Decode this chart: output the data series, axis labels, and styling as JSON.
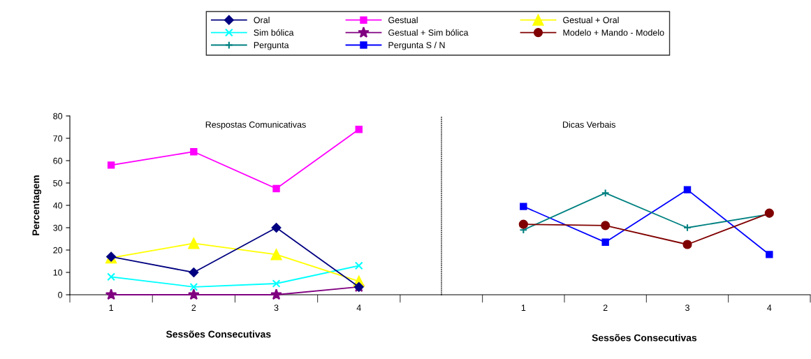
{
  "chart_data": [
    {
      "type": "line",
      "ylabel": "Percentagem",
      "xlabel": "Sessões Consecutivas",
      "categories": [
        "1",
        "2",
        "3",
        "4"
      ],
      "ylim": [
        0,
        80
      ],
      "yticks": [
        0,
        10,
        20,
        30,
        40,
        50,
        60,
        70,
        80
      ],
      "grid": false,
      "legend": "top",
      "annotations": [
        "Respostas Comunicativas"
      ],
      "series": [
        {
          "name": "Oral",
          "color": "#000080",
          "marker": "diamond",
          "values": [
            17,
            10,
            30,
            3.5
          ]
        },
        {
          "name": "Gestual",
          "color": "#ff00ff",
          "marker": "square",
          "values": [
            58,
            64,
            47.5,
            74
          ]
        },
        {
          "name": "Gestual + Oral",
          "color": "#ffff00",
          "marker": "triangle",
          "values": [
            16.5,
            23,
            18,
            6
          ]
        },
        {
          "name": "Sim bólica",
          "color": "#00ffff",
          "marker": "cross",
          "values": [
            8,
            3.5,
            5,
            13
          ]
        },
        {
          "name": "Gestual + Sim bólica",
          "color": "#800080",
          "marker": "star",
          "values": [
            0,
            0,
            0,
            3.5
          ]
        }
      ]
    },
    {
      "type": "line",
      "xlabel": "Sessões Consecutivas",
      "categories": [
        "1",
        "2",
        "3",
        "4"
      ],
      "ylim": [
        0,
        80
      ],
      "tick_labels": "x",
      "grid": false,
      "legend": "top",
      "annotations": [
        "Dicas Verbais"
      ],
      "series": [
        {
          "name": "Modelo + Mando - Modelo",
          "color": "#800000",
          "marker": "circle",
          "values": [
            31.5,
            31,
            22.5,
            36.5
          ]
        },
        {
          "name": "Pergunta",
          "color": "#008080",
          "marker": "cross",
          "values": [
            29,
            45.5,
            30,
            36
          ]
        },
        {
          "name": "Pergunta S / N",
          "color": "#0000ff",
          "marker": "square",
          "values": [
            39.5,
            23.5,
            47,
            18
          ]
        }
      ]
    }
  ]
}
